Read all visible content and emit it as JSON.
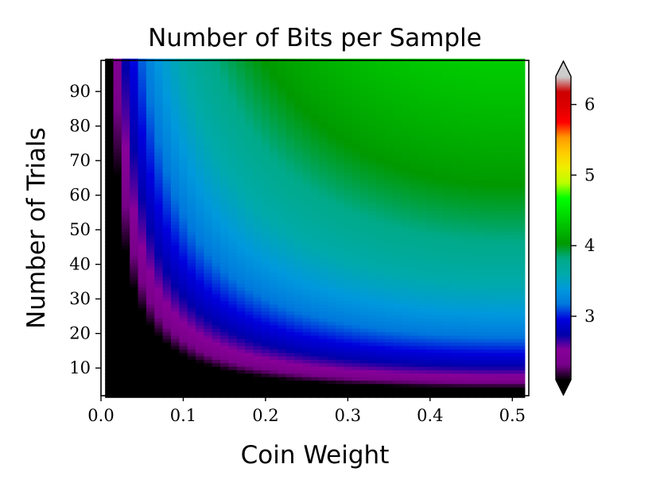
{
  "chart_data": {
    "type": "heatmap",
    "title": "Number of Bits per Sample",
    "xlabel": "Coin Weight",
    "ylabel": "Number of Trials",
    "xlim": [
      0.0,
      0.52
    ],
    "ylim": [
      2,
      99
    ],
    "x_ticks": [
      0.0,
      0.1,
      0.2,
      0.3,
      0.4,
      0.5
    ],
    "x_tick_labels": [
      "0.0",
      "0.1",
      "0.2",
      "0.3",
      "0.4",
      "0.5"
    ],
    "y_ticks": [
      10,
      20,
      30,
      40,
      50,
      60,
      70,
      80,
      90
    ],
    "y_tick_labels": [
      "10",
      "20",
      "30",
      "40",
      "50",
      "60",
      "70",
      "80",
      "90"
    ],
    "cell_x_start": 0.01,
    "cell_x_step": 0.01,
    "cell_x_count": 51,
    "cell_y_start": 2,
    "cell_y_step": 1,
    "cell_y_count": 98,
    "value_formula": "entropy in bits of Binomial(n = trials, p = coin weight)",
    "colorbar": {
      "colormap": "nipy_spectral",
      "vmin": 2.1,
      "vmax": 6.4,
      "extend": "both",
      "ticks": [
        3,
        4,
        5,
        6
      ],
      "tick_labels": [
        "3",
        "4",
        "5",
        "6"
      ]
    },
    "grid": false,
    "legend": "none"
  }
}
